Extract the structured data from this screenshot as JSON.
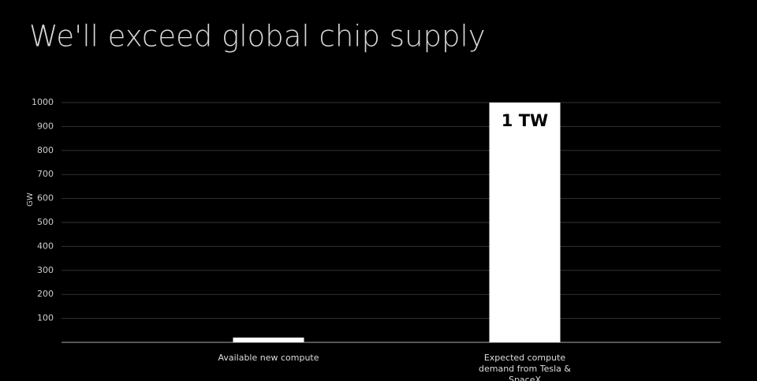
{
  "chart_data": {
    "type": "bar",
    "title": "We'll exceed global chip supply",
    "y_label": "GW",
    "categories": [
      "Available new compute",
      "Expected compute demand from Tesla & SpaceX"
    ],
    "values": [
      20,
      1000
    ],
    "value_labels": [
      null,
      "1 TW"
    ],
    "color": "#ffffff",
    "ylim": [
      0,
      1000
    ],
    "yticks": [
      100,
      200,
      300,
      400,
      500,
      600,
      700,
      800,
      900,
      1000
    ],
    "grid": true
  }
}
